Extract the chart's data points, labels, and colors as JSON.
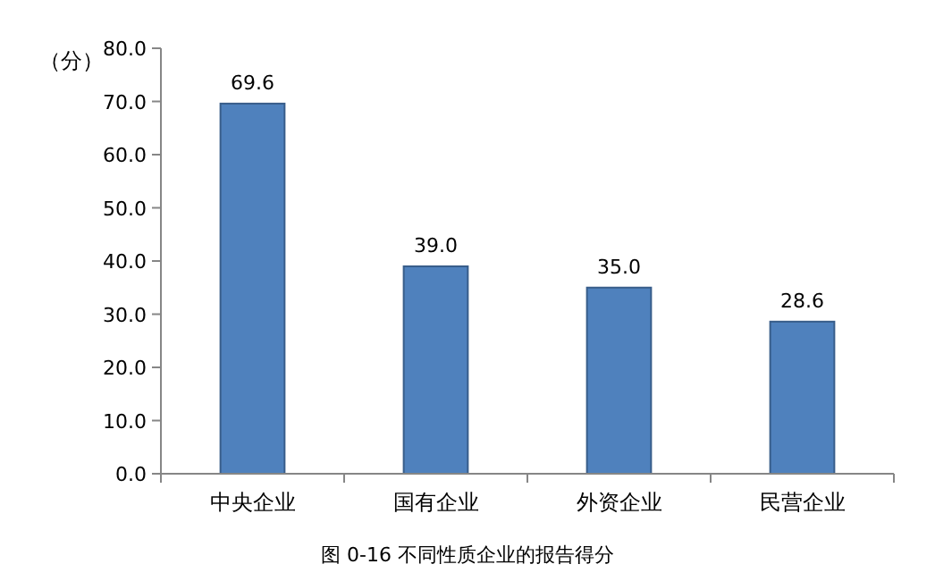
{
  "chart_data": {
    "type": "bar",
    "title": "图 0-16 不同性质企业的报告得分",
    "ylabel": "（分）",
    "categories": [
      "中央企业",
      "国有企业",
      "外资企业",
      "民营企业"
    ],
    "values": [
      69.6,
      39.0,
      35.0,
      28.6
    ],
    "value_labels": [
      "69.6",
      "39.0",
      "35.0",
      "28.6"
    ],
    "color": "#4f81bd",
    "ylim": [
      0,
      80
    ],
    "yticks": [
      {
        "value": 0,
        "label": "0.0"
      },
      {
        "value": 10,
        "label": "10.0"
      },
      {
        "value": 20,
        "label": "20.0"
      },
      {
        "value": 30,
        "label": "30.0"
      },
      {
        "value": 40,
        "label": "40.0"
      },
      {
        "value": 50,
        "label": "50.0"
      },
      {
        "value": 60,
        "label": "60.0"
      },
      {
        "value": 70,
        "label": "70.0"
      },
      {
        "value": 80,
        "label": "80.0"
      }
    ],
    "grid": false
  }
}
